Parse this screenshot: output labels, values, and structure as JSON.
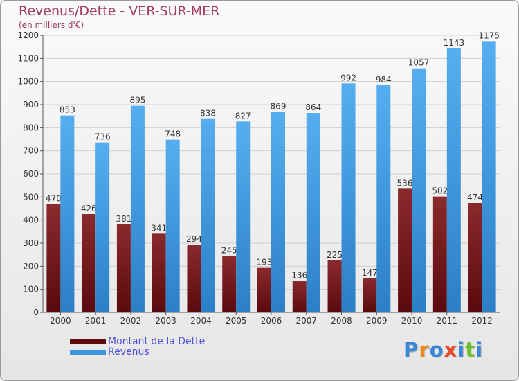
{
  "header": {
    "title": "Revenus/Dette - VER-SUR-MER",
    "subtitle": "(en milliers d'€)"
  },
  "chart_data": {
    "type": "bar",
    "categories": [
      "2000",
      "2001",
      "2002",
      "2003",
      "2004",
      "2005",
      "2006",
      "2007",
      "2008",
      "2009",
      "2010",
      "2011",
      "2012"
    ],
    "series": [
      {
        "name": "Montant de la Dette",
        "color": "#7a1f22",
        "values": [
          470,
          426,
          381,
          341,
          294,
          245,
          193,
          136,
          225,
          147,
          536,
          502,
          474
        ]
      },
      {
        "name": "Revenus",
        "color": "#3d97e0",
        "values": [
          853,
          736,
          895,
          748,
          838,
          827,
          869,
          864,
          992,
          984,
          1057,
          1143,
          1175
        ]
      }
    ],
    "ylim": [
      0,
      1200
    ],
    "yticks": [
      0,
      100,
      200,
      300,
      400,
      500,
      600,
      700,
      800,
      900,
      1000,
      1100,
      1200
    ],
    "grid": true,
    "xlabel": "",
    "ylabel": ""
  },
  "legend": {
    "items": [
      {
        "label": "Montant de la Dette",
        "color": "#5c0c10"
      },
      {
        "label": "Revenus",
        "color": "#3d97e0"
      }
    ]
  },
  "logo": {
    "text": "Proxiti",
    "letters": [
      "P",
      "r",
      "o",
      "x",
      "i",
      "t",
      "i"
    ],
    "colors": [
      "#3a86d9",
      "#e88a1e",
      "#3a86d9",
      "#e84a2c",
      "#3a86d9",
      "#6cbf2e",
      "#3a86d9"
    ]
  }
}
